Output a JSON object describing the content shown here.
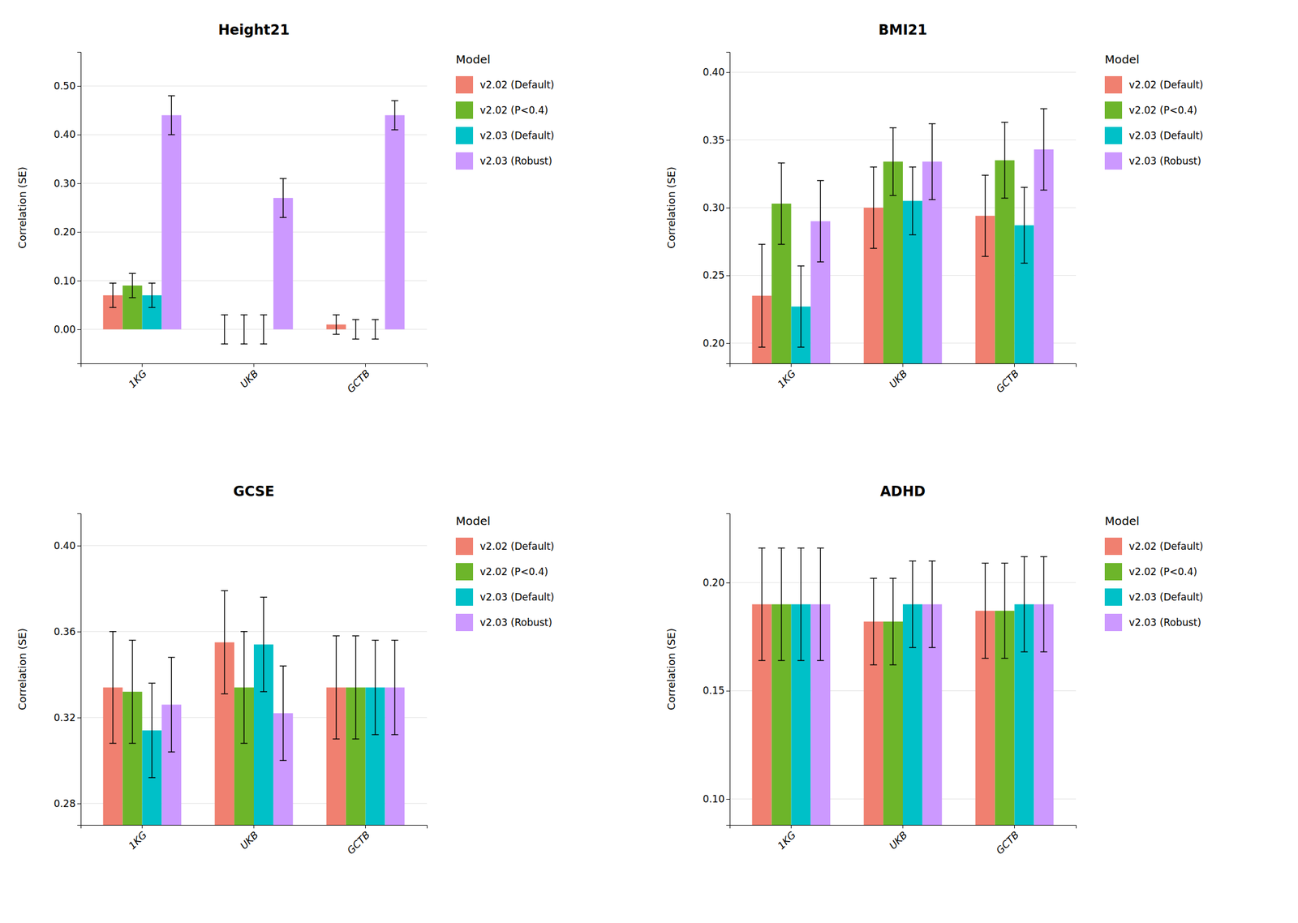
{
  "chart_data": [
    {
      "type": "bar",
      "title": "Height21",
      "y_label": "Correlation (SE)",
      "categories": [
        "1KG",
        "UKB",
        "GCTB"
      ],
      "series": [
        {
          "name": "v2.02 (Default)",
          "color": "#F08070",
          "values": [
            0.07,
            0.0,
            0.01
          ],
          "errors": [
            0.025,
            0.03,
            0.02
          ]
        },
        {
          "name": "v2.02 (P<0.4)",
          "color": "#6DB52A",
          "values": [
            0.09,
            0.0,
            0.0
          ],
          "errors": [
            0.025,
            0.03,
            0.02
          ]
        },
        {
          "name": "v2.03 (Default)",
          "color": "#00C0C8",
          "values": [
            0.07,
            0.0,
            0.0
          ],
          "errors": [
            0.025,
            0.03,
            0.02
          ]
        },
        {
          "name": "v2.03 (Robust)",
          "color": "#CC99FF",
          "values": [
            0.44,
            0.27,
            0.44
          ],
          "errors": [
            0.04,
            0.04,
            0.03
          ]
        }
      ],
      "ylim": [
        -0.07,
        0.57
      ],
      "yticks": [
        {
          "value": 0.0,
          "label": "0.00"
        },
        {
          "value": 0.1,
          "label": "0.10"
        },
        {
          "value": 0.2,
          "label": "0.20"
        },
        {
          "value": 0.3,
          "label": "0.30"
        },
        {
          "value": 0.4,
          "label": "0.40"
        },
        {
          "value": 0.5,
          "label": "0.50"
        }
      ],
      "grid": true,
      "legend": "right",
      "legend_title": "Model"
    },
    {
      "type": "bar",
      "title": "BMI21",
      "y_label": "Correlation (SE)",
      "categories": [
        "1KG",
        "UKB",
        "GCTB"
      ],
      "series": [
        {
          "name": "v2.02 (Default)",
          "color": "#F08070",
          "values": [
            0.235,
            0.3,
            0.294
          ],
          "errors": [
            0.038,
            0.03,
            0.03
          ]
        },
        {
          "name": "v2.02 (P<0.4)",
          "color": "#6DB52A",
          "values": [
            0.303,
            0.334,
            0.335
          ],
          "errors": [
            0.03,
            0.025,
            0.028
          ]
        },
        {
          "name": "v2.03 (Default)",
          "color": "#00C0C8",
          "values": [
            0.227,
            0.305,
            0.287
          ],
          "errors": [
            0.03,
            0.025,
            0.028
          ]
        },
        {
          "name": "v2.03 (Robust)",
          "color": "#CC99FF",
          "values": [
            0.29,
            0.334,
            0.343
          ],
          "errors": [
            0.03,
            0.028,
            0.03
          ]
        }
      ],
      "ylim": [
        0.185,
        0.415
      ],
      "yticks": [
        {
          "value": 0.2,
          "label": "0.20"
        },
        0.25,
        {
          "value": 0.3,
          "label": "0.30"
        },
        0.35,
        {
          "value": 0.4,
          "label": "0.40"
        }
      ],
      "grid": true,
      "legend": "right",
      "legend_title": "Model"
    },
    {
      "type": "bar",
      "title": "GCSE",
      "y_label": "Correlation (SE)",
      "categories": [
        "1KG",
        "UKB",
        "GCTB"
      ],
      "series": [
        {
          "name": "v2.02 (Default)",
          "color": "#F08070",
          "values": [
            0.334,
            0.355,
            0.334
          ],
          "errors": [
            0.026,
            0.024,
            0.024
          ]
        },
        {
          "name": "v2.02 (P<0.4)",
          "color": "#6DB52A",
          "values": [
            0.332,
            0.334,
            0.334
          ],
          "errors": [
            0.024,
            0.026,
            0.024
          ]
        },
        {
          "name": "v2.03 (Default)",
          "color": "#00C0C8",
          "values": [
            0.314,
            0.354,
            0.334
          ],
          "errors": [
            0.022,
            0.022,
            0.022
          ]
        },
        {
          "name": "v2.03 (Robust)",
          "color": "#CC99FF",
          "values": [
            0.326,
            0.322,
            0.334
          ],
          "errors": [
            0.022,
            0.022,
            0.022
          ]
        }
      ],
      "ylim": [
        0.27,
        0.415
      ],
      "yticks": [
        0.28,
        0.32,
        0.36,
        {
          "value": 0.4,
          "label": "0.40"
        }
      ],
      "grid": true,
      "legend": "right",
      "legend_title": "Model"
    },
    {
      "type": "bar",
      "title": "ADHD",
      "y_label": "Correlation (SE)",
      "categories": [
        "1KG",
        "UKB",
        "GCTB"
      ],
      "series": [
        {
          "name": "v2.02 (Default)",
          "color": "#F08070",
          "values": [
            0.19,
            0.182,
            0.187
          ],
          "errors": [
            0.026,
            0.02,
            0.022
          ]
        },
        {
          "name": "v2.02 (P<0.4)",
          "color": "#6DB52A",
          "values": [
            0.19,
            0.182,
            0.187
          ],
          "errors": [
            0.026,
            0.02,
            0.022
          ]
        },
        {
          "name": "v2.03 (Default)",
          "color": "#00C0C8",
          "values": [
            0.19,
            0.19,
            0.19
          ],
          "errors": [
            0.026,
            0.02,
            0.022
          ]
        },
        {
          "name": "v2.03 (Robust)",
          "color": "#CC99FF",
          "values": [
            0.19,
            0.19,
            0.19
          ],
          "errors": [
            0.026,
            0.02,
            0.022
          ]
        }
      ],
      "ylim": [
        0.088,
        0.232
      ],
      "yticks": [
        {
          "value": 0.1,
          "label": "0.10"
        },
        0.15,
        {
          "value": 0.2,
          "label": "0.20"
        }
      ],
      "grid": true,
      "legend": "right",
      "legend_title": "Model"
    }
  ]
}
